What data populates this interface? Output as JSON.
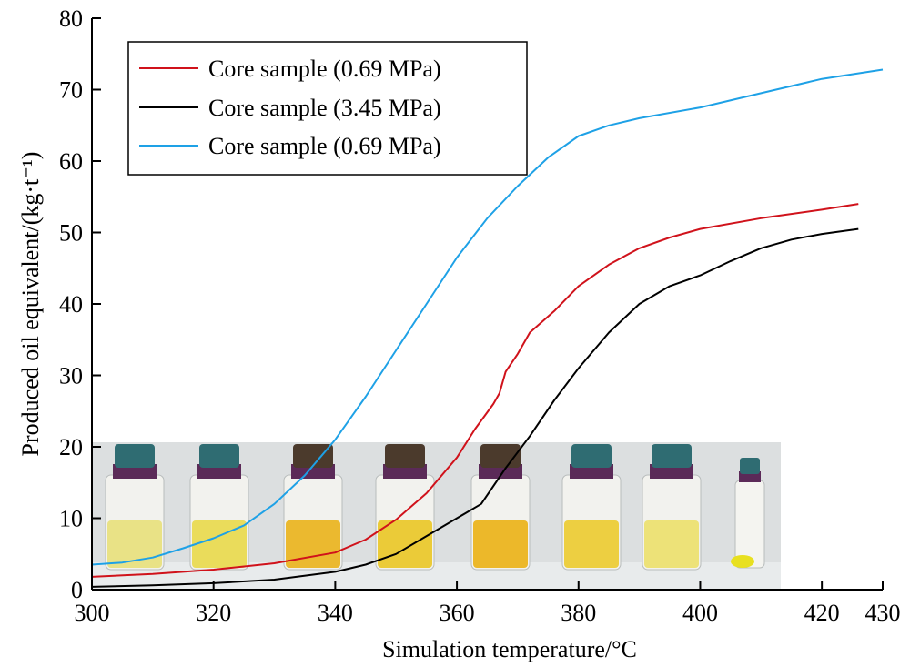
{
  "chart_data": {
    "type": "line",
    "xlabel": "Simulation temperature/°C",
    "ylabel": "Produced oil equivalent/(kg·t⁻¹)",
    "xlim": [
      300,
      430
    ],
    "ylim": [
      0,
      80
    ],
    "x_ticks": [
      300,
      320,
      340,
      360,
      380,
      400,
      420,
      430
    ],
    "y_ticks": [
      0,
      10,
      20,
      30,
      40,
      50,
      60,
      70,
      80
    ],
    "grid": false,
    "legend_position": "top-left",
    "series": [
      {
        "name": "Core sample (0.69 MPa)",
        "color": "#d0121b",
        "points": [
          [
            300,
            1.8
          ],
          [
            310,
            2.2
          ],
          [
            320,
            2.8
          ],
          [
            330,
            3.7
          ],
          [
            340,
            5.2
          ],
          [
            345,
            7.0
          ],
          [
            350,
            9.8
          ],
          [
            355,
            13.5
          ],
          [
            360,
            18.5
          ],
          [
            363,
            22.5
          ],
          [
            366,
            26.0
          ],
          [
            367,
            27.5
          ],
          [
            368,
            30.5
          ],
          [
            370,
            33.0
          ],
          [
            372,
            36.0
          ],
          [
            376,
            39.0
          ],
          [
            380,
            42.5
          ],
          [
            385,
            45.5
          ],
          [
            390,
            47.8
          ],
          [
            395,
            49.3
          ],
          [
            400,
            50.5
          ],
          [
            410,
            52.0
          ],
          [
            420,
            53.2
          ],
          [
            426,
            54.0
          ]
        ]
      },
      {
        "name": "Core sample (3.45 MPa)",
        "color": "#000000",
        "points": [
          [
            300,
            0.4
          ],
          [
            310,
            0.6
          ],
          [
            320,
            0.9
          ],
          [
            330,
            1.4
          ],
          [
            340,
            2.5
          ],
          [
            345,
            3.5
          ],
          [
            350,
            5.0
          ],
          [
            355,
            7.5
          ],
          [
            360,
            10.0
          ],
          [
            364,
            12.0
          ],
          [
            368,
            17.0
          ],
          [
            372,
            21.5
          ],
          [
            376,
            26.5
          ],
          [
            380,
            31.0
          ],
          [
            385,
            36.0
          ],
          [
            390,
            40.0
          ],
          [
            395,
            42.5
          ],
          [
            400,
            44.0
          ],
          [
            405,
            46.0
          ],
          [
            410,
            47.8
          ],
          [
            415,
            49.0
          ],
          [
            420,
            49.8
          ],
          [
            426,
            50.5
          ]
        ]
      },
      {
        "name": "Core sample (0.69 MPa)",
        "color": "#1ea1e6",
        "points": [
          [
            300,
            3.5
          ],
          [
            305,
            3.8
          ],
          [
            310,
            4.5
          ],
          [
            315,
            5.8
          ],
          [
            320,
            7.2
          ],
          [
            325,
            9.0
          ],
          [
            330,
            12.0
          ],
          [
            335,
            16.0
          ],
          [
            340,
            21.0
          ],
          [
            345,
            27.0
          ],
          [
            350,
            33.5
          ],
          [
            355,
            40.0
          ],
          [
            360,
            46.5
          ],
          [
            365,
            52.0
          ],
          [
            370,
            56.5
          ],
          [
            375,
            60.5
          ],
          [
            380,
            63.5
          ],
          [
            385,
            65.0
          ],
          [
            390,
            66.0
          ],
          [
            400,
            67.5
          ],
          [
            410,
            69.5
          ],
          [
            420,
            71.5
          ],
          [
            430,
            72.8
          ]
        ]
      }
    ]
  }
}
